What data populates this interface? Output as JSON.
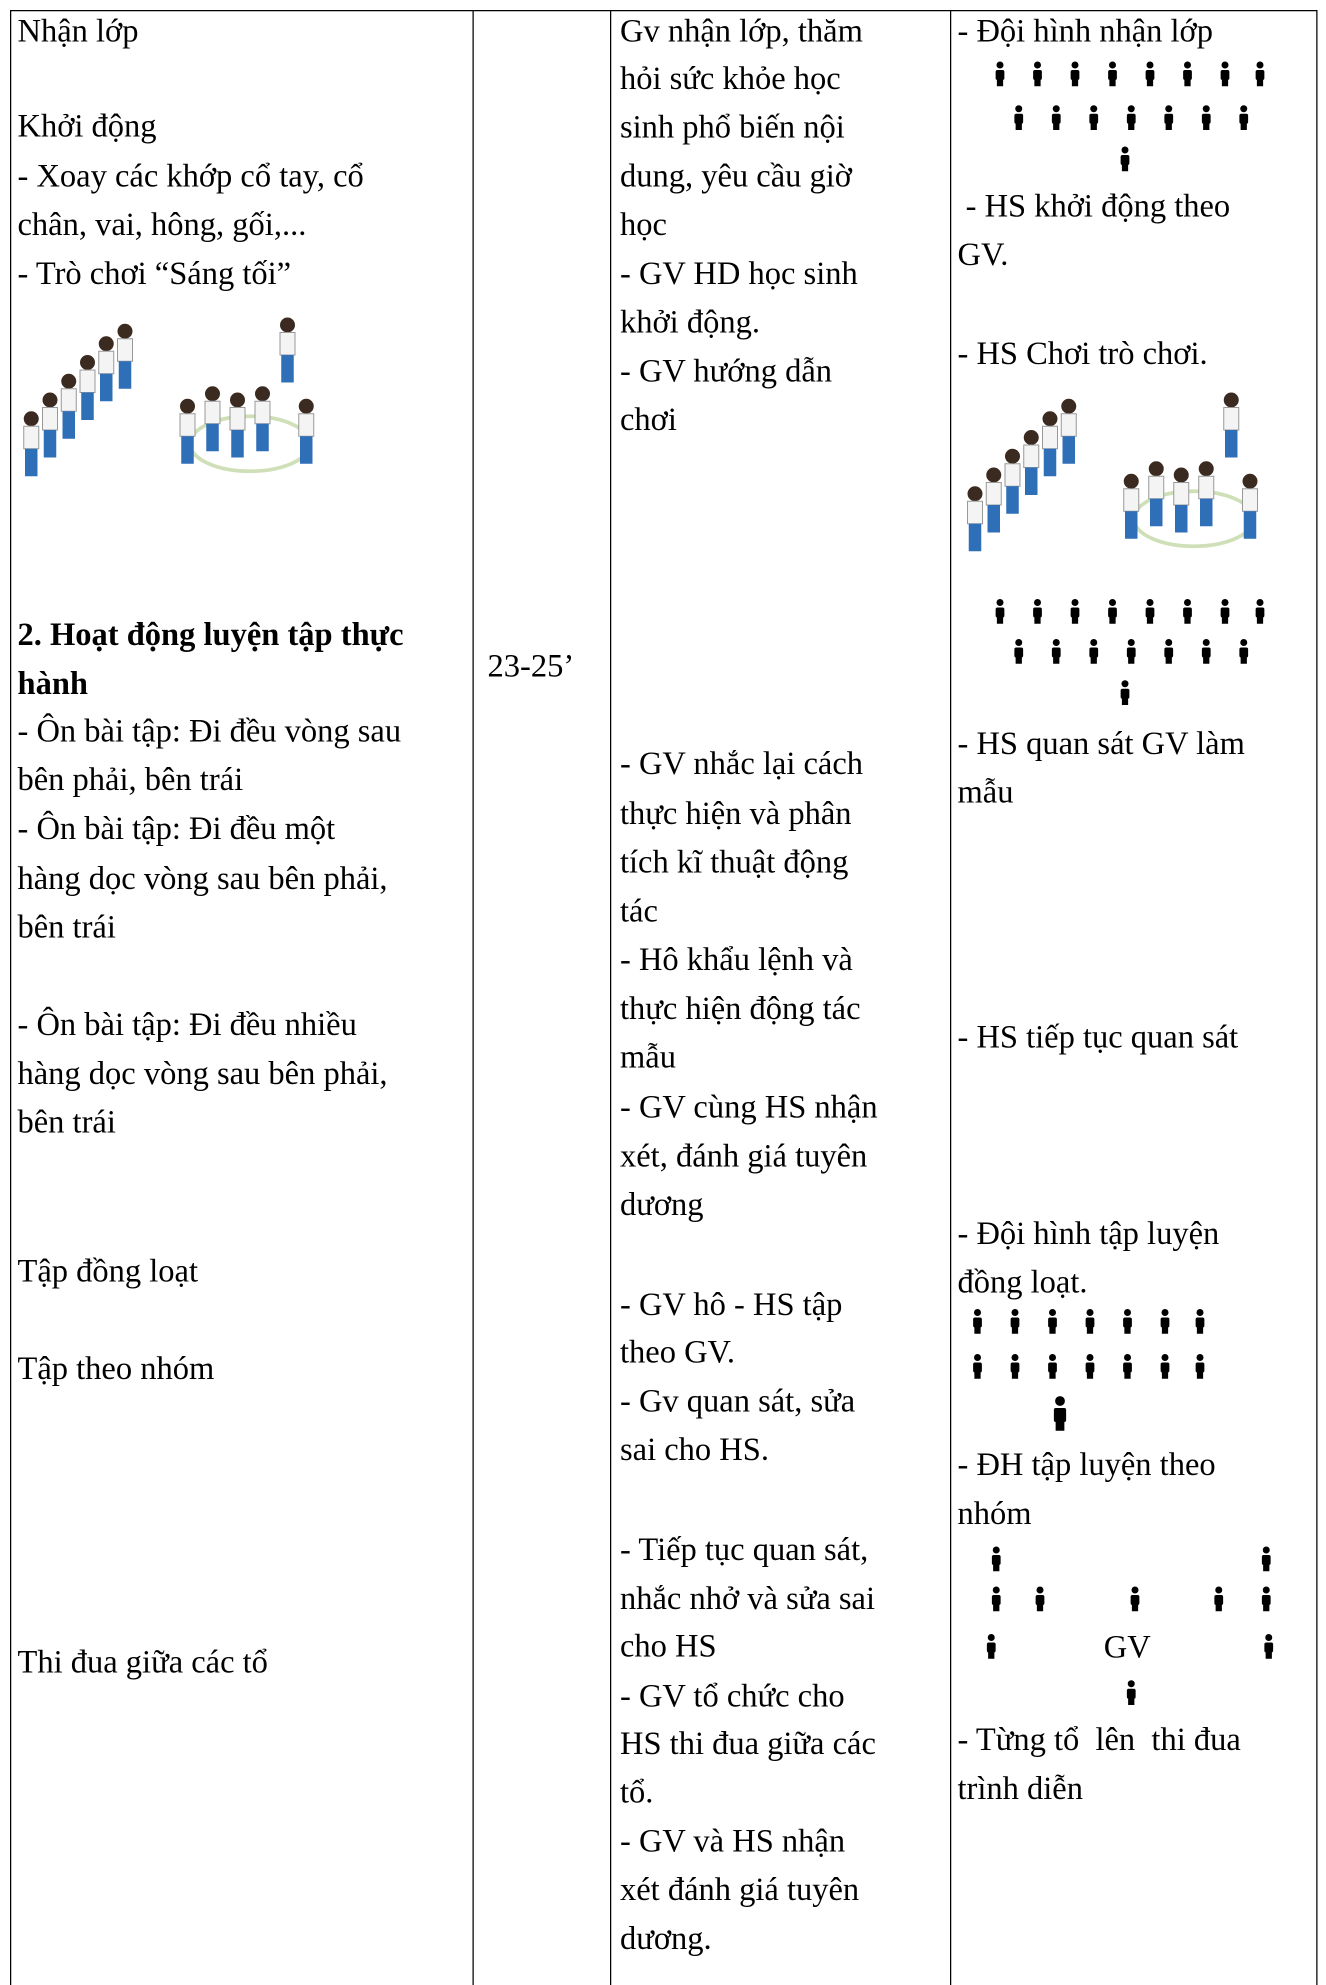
{
  "table": {
    "columns": [
      {
        "lines": [
          "Nhận lớp",
          "Khởi động",
          "- Xoay các khớp cổ tay, cổ",
          "chân, vai, hông, gối,...",
          "- Trò chơi “Sáng tối”",
          "2. Hoạt động luyện tập thực",
          "hành",
          "- Ôn bài tập: Đi đều vòng sau",
          "bên phải, bên trái",
          "- Ôn bài tập: Đi đều một",
          "hàng dọc vòng sau bên phải,",
          "bên trái",
          "- Ôn bài tập: Đi đều nhiều",
          "hàng dọc vòng sau bên phải,",
          "bên trái",
          "Tập đồng loạt",
          "Tập theo nhóm",
          "Thi đua giữa các tổ"
        ]
      },
      {
        "lines": [
          "23-25’"
        ]
      },
      {
        "lines": [
          "Gv nhận lớp, thăm",
          "hỏi sức khỏe học",
          "sinh phổ biến nội",
          "dung, yêu cầu giờ",
          "học",
          "- GV HD học sinh",
          "khởi động.",
          "- GV hướng dẫn",
          "chơi",
          "- GV nhắc lại cách",
          "thực hiện và phân",
          "tích kĩ thuật động",
          "tác",
          "- Hô khẩu lệnh và",
          "thực hiện động tác",
          "mẫu",
          "- GV cùng HS nhận",
          "xét, đánh giá tuyên",
          "dương",
          "- GV hô - HS tập",
          "theo GV.",
          "- Gv quan sát, sửa",
          "sai cho HS.",
          "- Tiếp tục quan sát,",
          "nhắc nhở và sửa sai",
          "cho HS",
          "- GV tổ chức cho",
          "HS thi đua giữa các",
          "tổ.",
          "- GV và HS nhận",
          "xét đánh giá tuyên",
          "dương."
        ]
      },
      {
        "lines": [
          "- Đội hình nhận lớp",
          " - HS khởi động theo",
          "GV.",
          "- HS Chơi trò chơi.",
          "- HS quan sát GV làm",
          "mẫu",
          "- HS tiếp tục quan sát",
          "- Đội hình tập luyện",
          "đồng loạt.",
          "- ĐH tập luyện theo",
          "nhóm",
          "GV",
          "- Từng tổ  lên  thi đua",
          "trình diễn"
        ]
      }
    ]
  }
}
